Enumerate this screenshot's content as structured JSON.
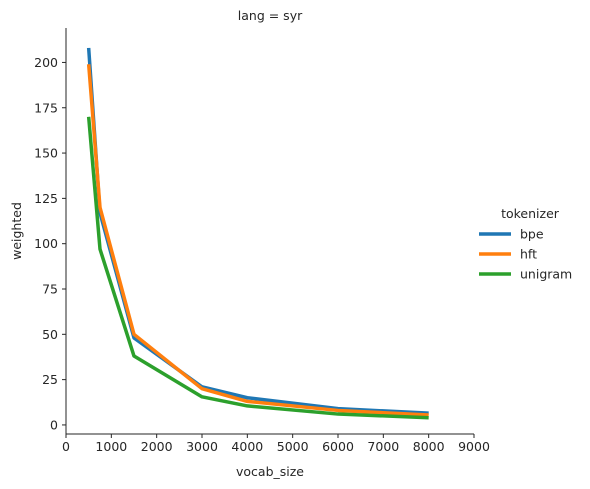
{
  "chart_data": {
    "type": "line",
    "title": "lang = syr",
    "xlabel": "vocab_size",
    "ylabel": "weighted",
    "xlim": [
      0,
      9000
    ],
    "ylim": [
      -5,
      219
    ],
    "x_ticks": [
      0,
      1000,
      2000,
      3000,
      4000,
      5000,
      6000,
      7000,
      8000,
      9000
    ],
    "y_ticks": [
      0,
      25,
      50,
      75,
      100,
      125,
      150,
      175,
      200
    ],
    "grid": false,
    "legend": {
      "title": "tokenizer",
      "position": "right"
    },
    "x": [
      500,
      750,
      1500,
      3000,
      4000,
      6000,
      8000
    ],
    "series": [
      {
        "name": "bpe",
        "color": "#1f77b4",
        "values": [
          208,
          117,
          48,
          21,
          15,
          9,
          6.5
        ]
      },
      {
        "name": "hft",
        "color": "#ff7f0e",
        "values": [
          199,
          120,
          50,
          20,
          13,
          8,
          5.5
        ]
      },
      {
        "name": "unigram",
        "color": "#2ca02c",
        "values": [
          170,
          97,
          38,
          15.5,
          10.5,
          6,
          4
        ]
      }
    ]
  }
}
